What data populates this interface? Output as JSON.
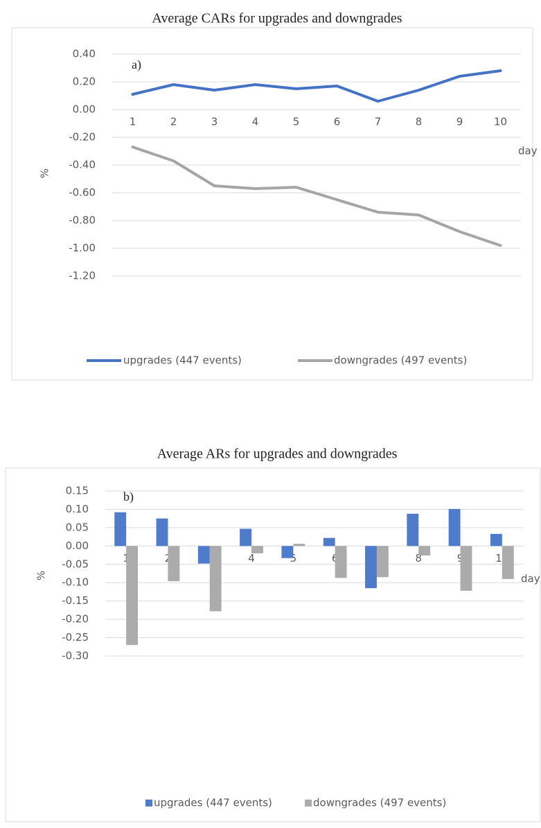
{
  "chart_data": [
    {
      "type": "line",
      "title": "Average CARs for upgrades and downgrades",
      "annotation": "a)",
      "y_label": "%",
      "x_label": "day",
      "categories": [
        "1",
        "2",
        "3",
        "4",
        "5",
        "6",
        "7",
        "8",
        "9",
        "10"
      ],
      "series": [
        {
          "name": "upgrades (447 events)",
          "color": "#4472c4",
          "values": [
            0.11,
            0.18,
            0.14,
            0.18,
            0.15,
            0.17,
            0.06,
            0.14,
            0.24,
            0.28
          ]
        },
        {
          "name": "downgrades (497 events)",
          "color": "#a5a5a5",
          "values": [
            -0.27,
            -0.37,
            -0.55,
            -0.57,
            -0.56,
            -0.65,
            -0.74,
            -0.76,
            -0.88,
            -0.98
          ]
        }
      ],
      "ylim": [
        -1.2,
        0.4
      ],
      "yticks": [
        {
          "value": 0.4,
          "label": "0.40"
        },
        {
          "value": 0.2,
          "label": "0.20"
        },
        {
          "value": 0,
          "label": "0.00"
        },
        {
          "value": -0.2,
          "label": "-0.20"
        },
        {
          "value": -0.4,
          "label": "-0.40"
        },
        {
          "value": -0.6,
          "label": "-0.60"
        },
        {
          "value": -0.8,
          "label": "-0.80"
        },
        {
          "value": -1,
          "label": "-1.00"
        },
        {
          "value": -1.2,
          "label": "-1.20"
        }
      ],
      "grid": true,
      "legend": "bottom"
    },
    {
      "type": "bar",
      "title": "Average ARs for upgrades and downgrades",
      "annotation": "b)",
      "y_label": "%",
      "x_label": "day",
      "categories": [
        "1",
        "2",
        "3",
        "4",
        "5",
        "6",
        "7",
        "8",
        "9",
        "10"
      ],
      "series": [
        {
          "name": "upgrades (447 events)",
          "color": "#4f7bcb",
          "values": [
            0.092,
            0.075,
            -0.048,
            0.047,
            -0.033,
            0.022,
            -0.115,
            0.088,
            0.101,
            0.033
          ]
        },
        {
          "name": "downgrades (497 events)",
          "color": "#ababab",
          "values": [
            -0.27,
            -0.096,
            -0.178,
            -0.02,
            0.006,
            -0.087,
            -0.085,
            -0.026,
            -0.122,
            -0.09
          ]
        }
      ],
      "ylim": [
        -0.3,
        0.15
      ],
      "yticks": [
        {
          "value": 0.15,
          "label": "0.15"
        },
        {
          "value": 0.1,
          "label": "0.10"
        },
        {
          "value": 0.05,
          "label": "0.05"
        },
        {
          "value": 0,
          "label": "0.00"
        },
        {
          "value": -0.05,
          "label": "-0.05"
        },
        {
          "value": -0.1,
          "label": "-0.10"
        },
        {
          "value": -0.15,
          "label": "-0.15"
        },
        {
          "value": -0.2,
          "label": "-0.20"
        },
        {
          "value": -0.25,
          "label": "-0.25"
        },
        {
          "value": -0.3,
          "label": "-0.30"
        }
      ],
      "grid": true,
      "legend": "bottom"
    }
  ]
}
